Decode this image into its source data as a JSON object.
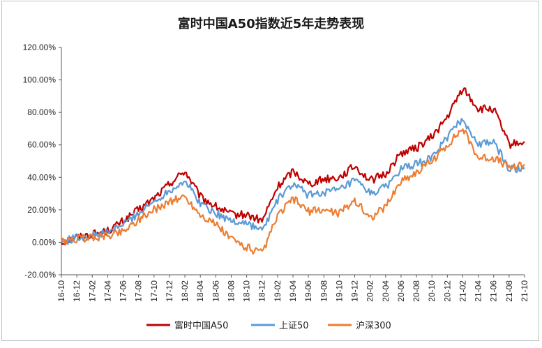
{
  "chart_data": {
    "type": "line",
    "title": "富时中国A50指数近5年走势表现",
    "xlabel": "",
    "ylabel": "",
    "ylim": [
      -0.2,
      1.2
    ],
    "yticks": [
      "120.00%",
      "100.00%",
      "80.00%",
      "60.00%",
      "40.00%",
      "20.00%",
      "0.00%",
      "-20.00%"
    ],
    "ytick_values": [
      1.2,
      1.0,
      0.8,
      0.6,
      0.4,
      0.2,
      0.0,
      -0.2
    ],
    "categories": [
      "16-10",
      "16-12",
      "17-02",
      "17-04",
      "17-06",
      "17-08",
      "17-10",
      "17-12",
      "18-02",
      "18-04",
      "18-06",
      "18-08",
      "18-10",
      "18-12",
      "19-02",
      "19-04",
      "19-06",
      "19-08",
      "19-10",
      "19-12",
      "20-02",
      "20-04",
      "20-06",
      "20-08",
      "20-10",
      "20-12",
      "21-02",
      "21-04",
      "21-06",
      "21-08",
      "21-10"
    ],
    "series": [
      {
        "name": "富时中国A50",
        "color": "#c00000",
        "values": [
          0.0,
          0.03,
          0.05,
          0.07,
          0.13,
          0.2,
          0.27,
          0.36,
          0.44,
          0.28,
          0.22,
          0.17,
          0.17,
          0.13,
          0.34,
          0.44,
          0.36,
          0.39,
          0.4,
          0.47,
          0.38,
          0.42,
          0.55,
          0.58,
          0.65,
          0.77,
          0.95,
          0.82,
          0.82,
          0.6,
          0.62
        ]
      },
      {
        "name": "上证50",
        "color": "#5b9bd5",
        "values": [
          0.0,
          0.03,
          0.04,
          0.06,
          0.11,
          0.18,
          0.25,
          0.32,
          0.38,
          0.24,
          0.18,
          0.13,
          0.12,
          0.07,
          0.26,
          0.36,
          0.29,
          0.31,
          0.32,
          0.38,
          0.3,
          0.34,
          0.45,
          0.48,
          0.52,
          0.65,
          0.76,
          0.6,
          0.62,
          0.45,
          0.46
        ]
      },
      {
        "name": "沪深300",
        "color": "#ed7d31",
        "values": [
          0.0,
          0.02,
          0.03,
          0.04,
          0.07,
          0.14,
          0.2,
          0.25,
          0.28,
          0.17,
          0.11,
          0.02,
          -0.03,
          -0.07,
          0.16,
          0.27,
          0.19,
          0.2,
          0.18,
          0.26,
          0.15,
          0.22,
          0.38,
          0.43,
          0.5,
          0.6,
          0.7,
          0.52,
          0.52,
          0.46,
          0.48
        ]
      }
    ],
    "legend": {
      "position": "bottom"
    },
    "grid": false
  }
}
